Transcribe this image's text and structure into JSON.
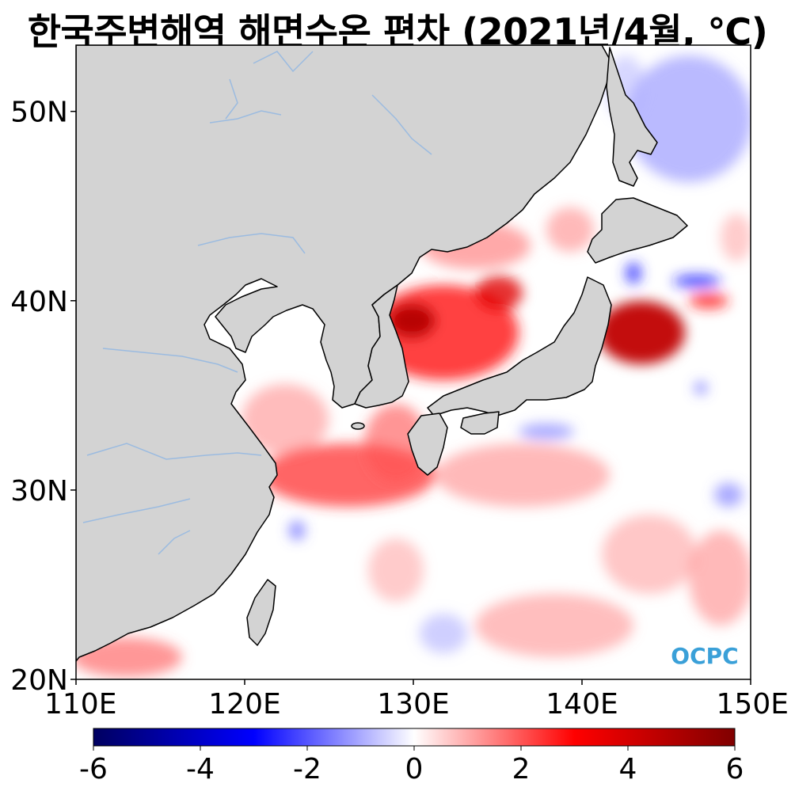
{
  "title": "한국주변해역 해면수온 편차 (2021년/4월, ℃)",
  "map": {
    "lon_range": [
      110,
      150
    ],
    "lat_range": [
      20,
      53.5
    ],
    "lat_ticks": [
      {
        "value": 50,
        "label": "50N"
      },
      {
        "value": 40,
        "label": "40N"
      },
      {
        "value": 30,
        "label": "30N"
      },
      {
        "value": 20,
        "label": "20N"
      }
    ],
    "lon_ticks": [
      {
        "value": 110,
        "label": "110E"
      },
      {
        "value": 120,
        "label": "120E"
      },
      {
        "value": 130,
        "label": "130E"
      },
      {
        "value": 140,
        "label": "140E"
      },
      {
        "value": 150,
        "label": "150E"
      }
    ],
    "land_color": "#d3d3d3",
    "coast_color": "#000000",
    "river_color": "#9bbbe0",
    "watermark": "OCPC"
  },
  "colorbar": {
    "min": -6,
    "max": 6,
    "labels": [
      "-6",
      "-4",
      "-2",
      "0",
      "2",
      "4",
      "6"
    ],
    "colors": [
      "#000060",
      "#0000ff",
      "#ffffff",
      "#ff0000",
      "#800000"
    ]
  }
}
